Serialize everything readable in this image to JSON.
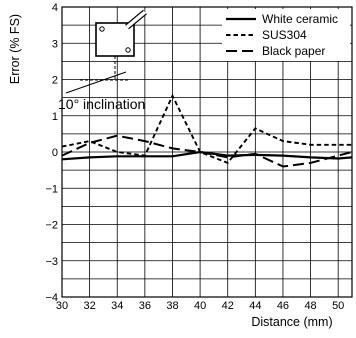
{
  "chart_data": {
    "type": "line",
    "xlabel": "Distance (mm)",
    "ylabel": "Error (% FS)",
    "xlim": [
      30,
      51
    ],
    "ylim": [
      -4,
      4
    ],
    "xticks": [
      "30",
      "32",
      "34",
      "36",
      "38",
      "40",
      "42",
      "44",
      "46",
      "48",
      "50"
    ],
    "yticks": [
      "4",
      "3",
      "2",
      "1",
      "0",
      "−1",
      "−2",
      "−3",
      "−4"
    ],
    "grid": true,
    "legend_position": "top-right",
    "annotation": "10° inclination",
    "series": [
      {
        "name": "White ceramic",
        "dash": "solid",
        "x": [
          30,
          32,
          34,
          36,
          38,
          40,
          42,
          44,
          46,
          48,
          50,
          51
        ],
        "y": [
          -0.2,
          -0.15,
          -0.12,
          -0.12,
          -0.12,
          0.0,
          -0.1,
          -0.08,
          -0.1,
          -0.15,
          -0.18,
          -0.15
        ]
      },
      {
        "name": "SUS304",
        "dash": "short",
        "x": [
          30,
          32,
          34,
          36,
          38,
          40,
          42,
          44,
          46,
          48,
          50,
          51
        ],
        "y": [
          0.15,
          0.3,
          0.0,
          -0.1,
          1.55,
          0.0,
          -0.3,
          0.65,
          0.3,
          0.2,
          0.2,
          0.2
        ]
      },
      {
        "name": "Black paper",
        "dash": "long",
        "x": [
          30,
          32,
          34,
          36,
          38,
          40,
          42,
          44,
          46,
          48,
          50,
          51
        ],
        "y": [
          -0.1,
          0.25,
          0.45,
          0.3,
          0.1,
          0.0,
          -0.15,
          -0.05,
          -0.4,
          -0.3,
          -0.1,
          0.0
        ]
      }
    ]
  }
}
